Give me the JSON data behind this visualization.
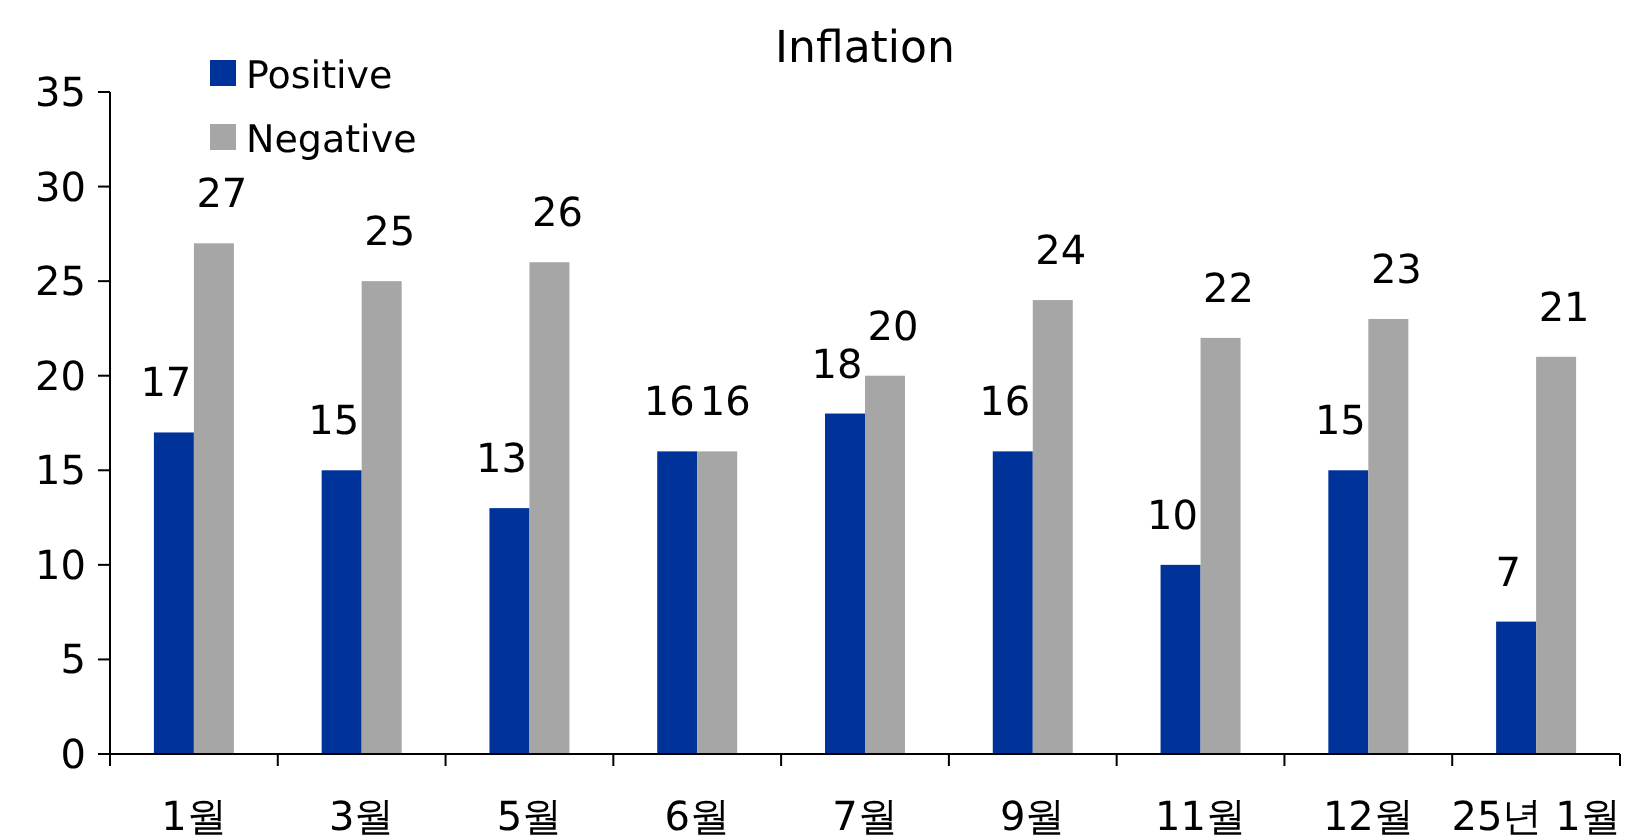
{
  "chart_data": {
    "type": "bar",
    "title": "Inflation",
    "categories": [
      "1월",
      "3월",
      "5월",
      "6월",
      "7월",
      "9월",
      "11월",
      "12월",
      "25년 1월"
    ],
    "series": [
      {
        "name": "Positive",
        "color": "#003399",
        "values": [
          17,
          15,
          13,
          16,
          18,
          16,
          10,
          15,
          7
        ]
      },
      {
        "name": "Negative",
        "color": "#a6a6a6",
        "values": [
          27,
          25,
          26,
          16,
          20,
          24,
          22,
          23,
          21
        ]
      }
    ],
    "ylim": [
      0,
      35
    ],
    "yticks": [
      0,
      5,
      10,
      15,
      20,
      25,
      30,
      35
    ],
    "data_labels": true,
    "legend": "top left",
    "grid": false
  }
}
